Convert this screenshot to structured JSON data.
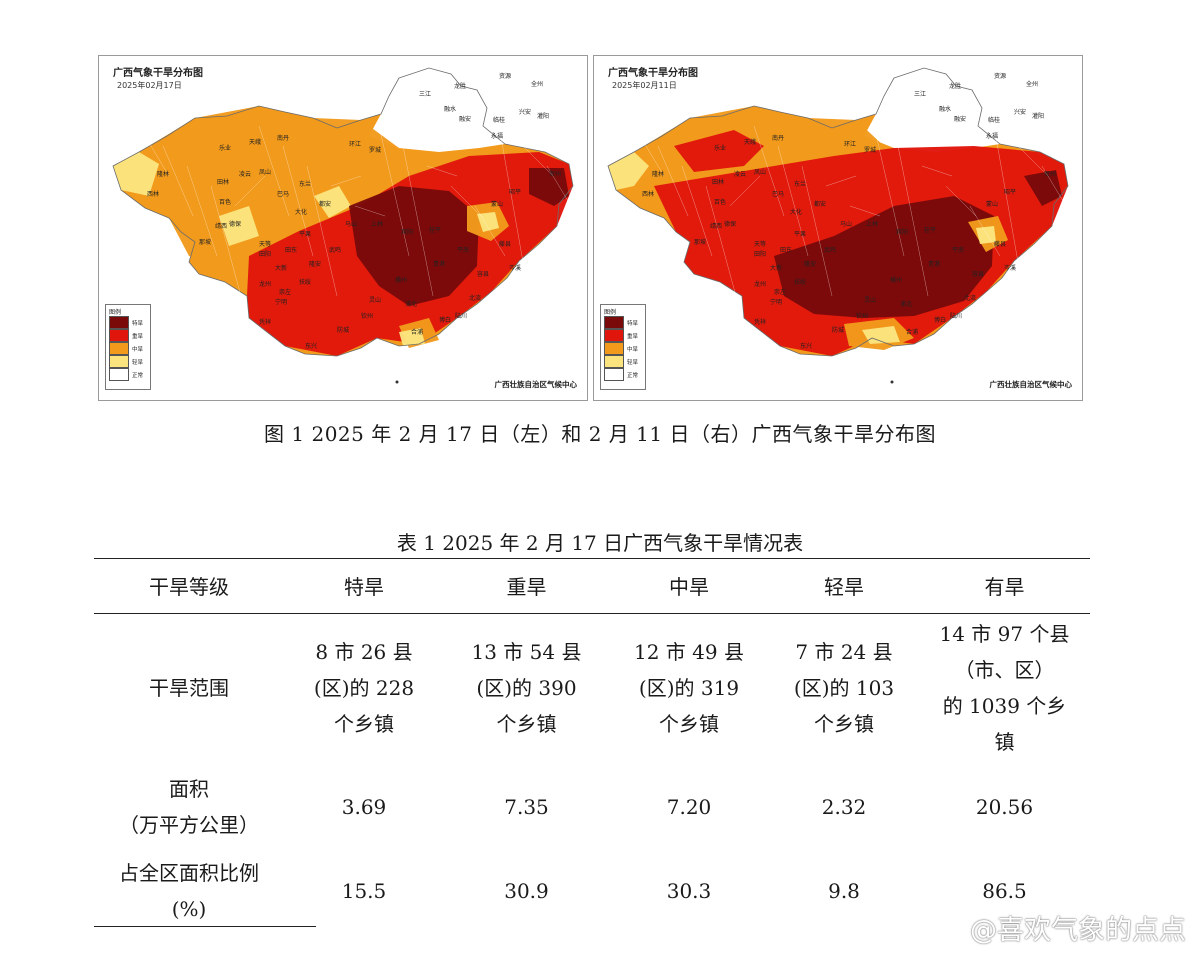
{
  "maps": [
    {
      "title": "广西气象干旱分布图",
      "date": "2025年02月17日",
      "credit": "广西壮族自治区气候中心",
      "legend_title": "图例",
      "legend": [
        {
          "label": "特旱",
          "color": "#7a0a0a"
        },
        {
          "label": "重旱",
          "color": "#e0160c"
        },
        {
          "label": "中旱",
          "color": "#f29a1c"
        },
        {
          "label": "轻旱",
          "color": "#fbe47e"
        },
        {
          "label": "正常",
          "color": "#ffffff"
        }
      ],
      "cities": [
        "资源",
        "全州",
        "兴安",
        "灌阳",
        "临桂",
        "三江",
        "融水",
        "融安",
        "永福",
        "龙胜",
        "南丹",
        "天峨",
        "环江",
        "罗城",
        "乐业",
        "凤山",
        "凌云",
        "田林",
        "隆林",
        "西林",
        "百色",
        "巴马",
        "东兰",
        "都安",
        "大化",
        "马山",
        "上林",
        "宾阳",
        "贵港",
        "横州",
        "灵山",
        "浦北",
        "合浦",
        "钦州",
        "防城",
        "东兴",
        "凭祥",
        "宁明",
        "龙州",
        "大新",
        "靖西",
        "那坡",
        "德保",
        "天等",
        "平果",
        "田东",
        "田阳",
        "武鸣",
        "隆安",
        "扶绥",
        "崇左",
        "贺州",
        "昭平",
        "蒙山",
        "平南",
        "桂平",
        "藤县",
        "岑溪",
        "容县",
        "北流",
        "陆川",
        "博白"
      ]
    },
    {
      "title": "广西气象干旱分布图",
      "date": "2025年02月11日",
      "credit": "广西壮族自治区气候中心",
      "legend_title": "图例",
      "legend": [
        {
          "label": "特旱",
          "color": "#7a0a0a"
        },
        {
          "label": "重旱",
          "color": "#e0160c"
        },
        {
          "label": "中旱",
          "color": "#f29a1c"
        },
        {
          "label": "轻旱",
          "color": "#fbe47e"
        },
        {
          "label": "正常",
          "color": "#ffffff"
        }
      ],
      "cities": [
        "资源",
        "全州",
        "兴安",
        "灌阳",
        "临桂",
        "三江",
        "融水",
        "融安",
        "永福",
        "龙胜",
        "南丹",
        "天峨",
        "环江",
        "罗城",
        "乐业",
        "凤山",
        "凌云",
        "田林",
        "隆林",
        "西林",
        "百色",
        "巴马",
        "东兰",
        "都安",
        "大化",
        "马山",
        "上林",
        "宾阳",
        "贵港",
        "横州",
        "灵山",
        "浦北",
        "合浦",
        "钦州",
        "防城",
        "东兴",
        "凭祥",
        "宁明",
        "龙州",
        "大新",
        "靖西",
        "那坡",
        "德保",
        "天等",
        "平果",
        "田东",
        "田阳",
        "武鸣",
        "隆安",
        "扶绥",
        "崇左",
        "贺州",
        "昭平",
        "蒙山",
        "平南",
        "桂平",
        "藤县",
        "岑溪",
        "容县",
        "北流",
        "陆川",
        "博白"
      ]
    }
  ],
  "figure_caption": "图 1  2025 年 2 月 17 日（左）和 2 月 11 日（右）广西气象干旱分布图",
  "table": {
    "caption": "表 1  2025 年 2 月 17 日广西气象干旱情况表",
    "headers": [
      "干旱等级",
      "特旱",
      "重旱",
      "中旱",
      "轻旱",
      "有旱"
    ],
    "rows": [
      {
        "label_lines": [
          "干旱范围"
        ],
        "cells": [
          [
            "8 市 26 县",
            "(区)的 228",
            "个乡镇"
          ],
          [
            "13 市 54 县",
            "(区)的 390",
            "个乡镇"
          ],
          [
            "12 市 49 县",
            "(区)的 319",
            "个乡镇"
          ],
          [
            "7 市 24 县",
            "(区)的 103",
            "个乡镇"
          ],
          [
            "14 市 97 个县",
            "（市、区）",
            "的 1039 个乡",
            "镇"
          ]
        ]
      },
      {
        "label_lines": [
          "面积",
          "（万平方公里）"
        ],
        "cells": [
          [
            "3.69"
          ],
          [
            "7.35"
          ],
          [
            "7.20"
          ],
          [
            "2.32"
          ],
          [
            "20.56"
          ]
        ]
      },
      {
        "label_lines": [
          "占全区面积比例",
          "(%)"
        ],
        "cells": [
          [
            "15.5"
          ],
          [
            "30.9"
          ],
          [
            "30.3"
          ],
          [
            "9.8"
          ],
          [
            "86.5"
          ]
        ]
      }
    ]
  },
  "watermark": "@喜欢气象的点点",
  "watermark_icon": "weibo-icon"
}
